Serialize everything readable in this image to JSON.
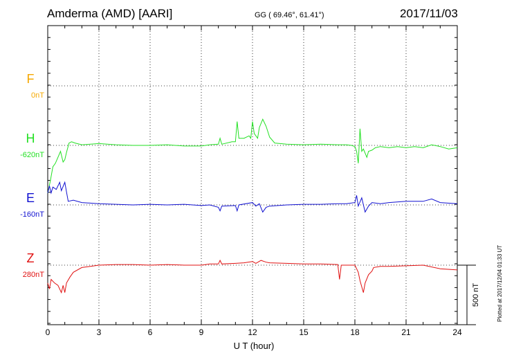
{
  "header": {
    "station": "Amderma (AMD)  [AARI]",
    "coords": "GG ( 69.46°,  61.41°)",
    "date": "2017/11/03"
  },
  "plotted_note": "Plotted at 2017/12/04 01:33 UT",
  "colors": {
    "F": "#f5a800",
    "H": "#22e022",
    "E": "#1010d0",
    "Z": "#e01010",
    "axis": "#000000"
  },
  "chart_data": {
    "type": "line",
    "xlabel": "U T (hour)",
    "xlim": [
      0,
      24
    ],
    "xticks": [
      0,
      3,
      6,
      9,
      12,
      15,
      18,
      21,
      24
    ],
    "scale_bar": "500 nT",
    "series": [
      {
        "name": "F",
        "baseline_label": "0nT",
        "color": "#f5a800",
        "points": []
      },
      {
        "name": "H",
        "baseline_label": "-620nT",
        "color": "#22e022",
        "points": [
          [
            0,
            -400
          ],
          [
            0.15,
            -300
          ],
          [
            0.3,
            -180
          ],
          [
            0.45,
            -150
          ],
          [
            0.6,
            -100
          ],
          [
            0.75,
            -50
          ],
          [
            0.9,
            -140
          ],
          [
            1.0,
            -120
          ],
          [
            1.1,
            -60
          ],
          [
            1.25,
            20
          ],
          [
            1.4,
            30
          ],
          [
            1.6,
            20
          ],
          [
            2.0,
            5
          ],
          [
            2.5,
            10
          ],
          [
            3,
            15
          ],
          [
            3.5,
            10
          ],
          [
            4,
            5
          ],
          [
            5,
            0
          ],
          [
            6,
            0
          ],
          [
            7,
            5
          ],
          [
            8,
            -5
          ],
          [
            9,
            -5
          ],
          [
            9.5,
            5
          ],
          [
            10,
            10
          ],
          [
            10.1,
            60
          ],
          [
            10.2,
            10
          ],
          [
            10.8,
            30
          ],
          [
            11.0,
            30
          ],
          [
            11.1,
            200
          ],
          [
            11.2,
            60
          ],
          [
            11.5,
            60
          ],
          [
            11.8,
            80
          ],
          [
            11.9,
            60
          ],
          [
            12.0,
            200
          ],
          [
            12.1,
            100
          ],
          [
            12.3,
            60
          ],
          [
            12.4,
            150
          ],
          [
            12.6,
            220
          ],
          [
            12.8,
            160
          ],
          [
            13.0,
            70
          ],
          [
            13.3,
            20
          ],
          [
            14,
            10
          ],
          [
            15,
            5
          ],
          [
            16,
            10
          ],
          [
            17,
            5
          ],
          [
            17.5,
            5
          ],
          [
            17.8,
            0
          ],
          [
            18.0,
            -10
          ],
          [
            18.1,
            -50
          ],
          [
            18.2,
            -150
          ],
          [
            18.3,
            140
          ],
          [
            18.4,
            -50
          ],
          [
            18.5,
            -30
          ],
          [
            18.7,
            -100
          ],
          [
            18.8,
            -50
          ],
          [
            19.0,
            -40
          ],
          [
            19.2,
            -20
          ],
          [
            19.5,
            -10
          ],
          [
            20,
            -20
          ],
          [
            20.5,
            -10
          ],
          [
            21,
            -20
          ],
          [
            21.5,
            -10
          ],
          [
            22,
            -20
          ],
          [
            22.5,
            5
          ],
          [
            23,
            -10
          ],
          [
            23.5,
            -30
          ],
          [
            24,
            -20
          ]
        ]
      },
      {
        "name": "E",
        "baseline_label": "-160nT",
        "color": "#1010d0",
        "points": [
          [
            0,
            100
          ],
          [
            0.1,
            160
          ],
          [
            0.2,
            100
          ],
          [
            0.3,
            150
          ],
          [
            0.5,
            130
          ],
          [
            0.7,
            190
          ],
          [
            0.8,
            120
          ],
          [
            1.0,
            190
          ],
          [
            1.1,
            110
          ],
          [
            1.2,
            30
          ],
          [
            1.5,
            40
          ],
          [
            2.0,
            20
          ],
          [
            2.5,
            15
          ],
          [
            3,
            10
          ],
          [
            4,
            5
          ],
          [
            5,
            0
          ],
          [
            6,
            5
          ],
          [
            7,
            0
          ],
          [
            8,
            5
          ],
          [
            9,
            -5
          ],
          [
            9.5,
            0
          ],
          [
            10,
            -20
          ],
          [
            10.1,
            -50
          ],
          [
            10.2,
            -10
          ],
          [
            11.0,
            -5
          ],
          [
            11.1,
            -50
          ],
          [
            11.2,
            0
          ],
          [
            12,
            20
          ],
          [
            12.2,
            -10
          ],
          [
            12.4,
            10
          ],
          [
            12.6,
            -60
          ],
          [
            12.8,
            -20
          ],
          [
            13.0,
            -10
          ],
          [
            14,
            0
          ],
          [
            15,
            5
          ],
          [
            16,
            5
          ],
          [
            17,
            10
          ],
          [
            17.5,
            10
          ],
          [
            18.0,
            20
          ],
          [
            18.1,
            80
          ],
          [
            18.2,
            -10
          ],
          [
            18.4,
            60
          ],
          [
            18.6,
            -60
          ],
          [
            18.8,
            -10
          ],
          [
            19,
            20
          ],
          [
            19.5,
            10
          ],
          [
            20,
            20
          ],
          [
            21,
            30
          ],
          [
            22,
            30
          ],
          [
            22.5,
            50
          ],
          [
            23,
            20
          ],
          [
            24,
            10
          ]
        ]
      },
      {
        "name": "Z",
        "baseline_label": "280nT",
        "color": "#e01010",
        "points": [
          [
            0,
            -150
          ],
          [
            0.1,
            -200
          ],
          [
            0.2,
            -120
          ],
          [
            0.4,
            -150
          ],
          [
            0.6,
            -170
          ],
          [
            0.8,
            -230
          ],
          [
            0.9,
            -170
          ],
          [
            1.0,
            -230
          ],
          [
            1.1,
            -150
          ],
          [
            1.3,
            -100
          ],
          [
            1.5,
            -60
          ],
          [
            2.0,
            -20
          ],
          [
            2.5,
            -10
          ],
          [
            3,
            0
          ],
          [
            4,
            5
          ],
          [
            5,
            5
          ],
          [
            6,
            0
          ],
          [
            7,
            5
          ],
          [
            8,
            0
          ],
          [
            9,
            0
          ],
          [
            9.5,
            10
          ],
          [
            10,
            10
          ],
          [
            10.1,
            40
          ],
          [
            10.2,
            10
          ],
          [
            11,
            15
          ],
          [
            11.5,
            20
          ],
          [
            12,
            30
          ],
          [
            12.2,
            15
          ],
          [
            12.5,
            40
          ],
          [
            12.8,
            25
          ],
          [
            13,
            20
          ],
          [
            14,
            15
          ],
          [
            15,
            10
          ],
          [
            16,
            10
          ],
          [
            17,
            5
          ],
          [
            17.1,
            -120
          ],
          [
            17.2,
            0
          ],
          [
            18,
            0
          ],
          [
            18.1,
            -30
          ],
          [
            18.2,
            -60
          ],
          [
            18.3,
            -130
          ],
          [
            18.5,
            -230
          ],
          [
            18.6,
            -150
          ],
          [
            18.8,
            -80
          ],
          [
            19.0,
            -50
          ],
          [
            19.1,
            -20
          ],
          [
            19.5,
            -10
          ],
          [
            20,
            -10
          ],
          [
            21,
            -5
          ],
          [
            22,
            0
          ],
          [
            23,
            -30
          ],
          [
            24,
            -40
          ]
        ]
      }
    ]
  }
}
